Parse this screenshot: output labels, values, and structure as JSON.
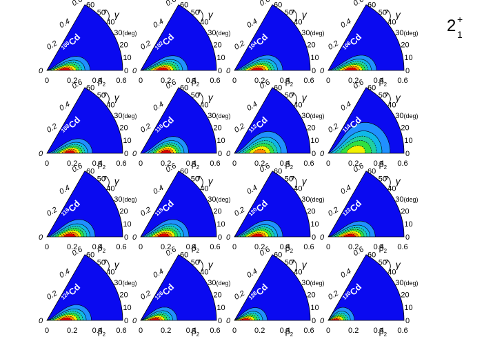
{
  "state_label": {
    "base": "2",
    "sup": "+",
    "sub": "1"
  },
  "gamma_symbol": "γ",
  "gamma_unit": "(deg)",
  "beta_symbol": "β",
  "beta_sub": "2",
  "chart_data": {
    "type": "heatmap",
    "description_axes": {
      "radial_label": "β2",
      "angular_label": "γ (deg)",
      "radial_ticks": [
        "0",
        "0.2",
        "0.4",
        "0.6"
      ],
      "angular_ticks": [
        "0",
        "10",
        "20",
        "30",
        "40",
        "50",
        "60"
      ],
      "radial_range": [
        0,
        0.6
      ],
      "angular_range": [
        0,
        60
      ]
    },
    "colors": {
      "background": "#0a0af0",
      "low": "#2090ff",
      "mid": "#20d0a0",
      "green": "#30e040",
      "yellow": "#f0f000",
      "orange": "#ff8800",
      "peak": "#e00000"
    },
    "panels": [
      {
        "mass": "100",
        "element": "Cd",
        "peak_beta": 0.14,
        "peak_gamma": 0,
        "spread_beta": 0.09,
        "spread_gamma": 14,
        "peak_level": 1.0
      },
      {
        "mass": "102",
        "element": "Cd",
        "peak_beta": 0.17,
        "peak_gamma": 0,
        "spread_beta": 0.09,
        "spread_gamma": 13,
        "peak_level": 1.0
      },
      {
        "mass": "104",
        "element": "Cd",
        "peak_beta": 0.18,
        "peak_gamma": 0,
        "spread_beta": 0.09,
        "spread_gamma": 13,
        "peak_level": 1.0
      },
      {
        "mass": "106",
        "element": "Cd",
        "peak_beta": 0.18,
        "peak_gamma": 0,
        "spread_beta": 0.09,
        "spread_gamma": 13,
        "peak_level": 1.0
      },
      {
        "mass": "108",
        "element": "Cd",
        "peak_beta": 0.18,
        "peak_gamma": 0,
        "spread_beta": 0.08,
        "spread_gamma": 13,
        "peak_level": 1.0
      },
      {
        "mass": "110",
        "element": "Cd",
        "peak_beta": 0.2,
        "peak_gamma": 0,
        "spread_beta": 0.08,
        "spread_gamma": 14,
        "peak_level": 1.0
      },
      {
        "mass": "112",
        "element": "Cd",
        "peak_beta": 0.2,
        "peak_gamma": 0,
        "spread_beta": 0.1,
        "spread_gamma": 18,
        "peak_level": 0.85
      },
      {
        "mass": "114",
        "element": "Cd",
        "peak_beta": 0.22,
        "peak_gamma": 3,
        "spread_beta": 0.13,
        "spread_gamma": 22,
        "peak_level": 0.7
      },
      {
        "mass": "116",
        "element": "Cd",
        "peak_beta": 0.18,
        "peak_gamma": 0,
        "spread_beta": 0.09,
        "spread_gamma": 15,
        "peak_level": 1.0
      },
      {
        "mass": "118",
        "element": "Cd",
        "peak_beta": 0.18,
        "peak_gamma": 0,
        "spread_beta": 0.09,
        "spread_gamma": 15,
        "peak_level": 1.0
      },
      {
        "mass": "120",
        "element": "Cd",
        "peak_beta": 0.18,
        "peak_gamma": 0,
        "spread_beta": 0.09,
        "spread_gamma": 14,
        "peak_level": 1.0
      },
      {
        "mass": "122",
        "element": "Cd",
        "peak_beta": 0.17,
        "peak_gamma": 0,
        "spread_beta": 0.09,
        "spread_gamma": 14,
        "peak_level": 1.0
      },
      {
        "mass": "124",
        "element": "Cd",
        "peak_beta": 0.15,
        "peak_gamma": 0,
        "spread_beta": 0.09,
        "spread_gamma": 15,
        "peak_level": 1.0
      },
      {
        "mass": "126",
        "element": "Cd",
        "peak_beta": 0.11,
        "peak_gamma": 0,
        "spread_beta": 0.08,
        "spread_gamma": 16,
        "peak_level": 1.0
      },
      {
        "mass": "128",
        "element": "Cd",
        "peak_beta": 0.08,
        "peak_gamma": 0,
        "spread_beta": 0.08,
        "spread_gamma": 18,
        "peak_level": 1.0
      },
      {
        "mass": "130",
        "element": "Cd",
        "peak_beta": 0.05,
        "peak_gamma": 0,
        "spread_beta": 0.07,
        "spread_gamma": 25,
        "peak_level": 1.0
      }
    ]
  }
}
